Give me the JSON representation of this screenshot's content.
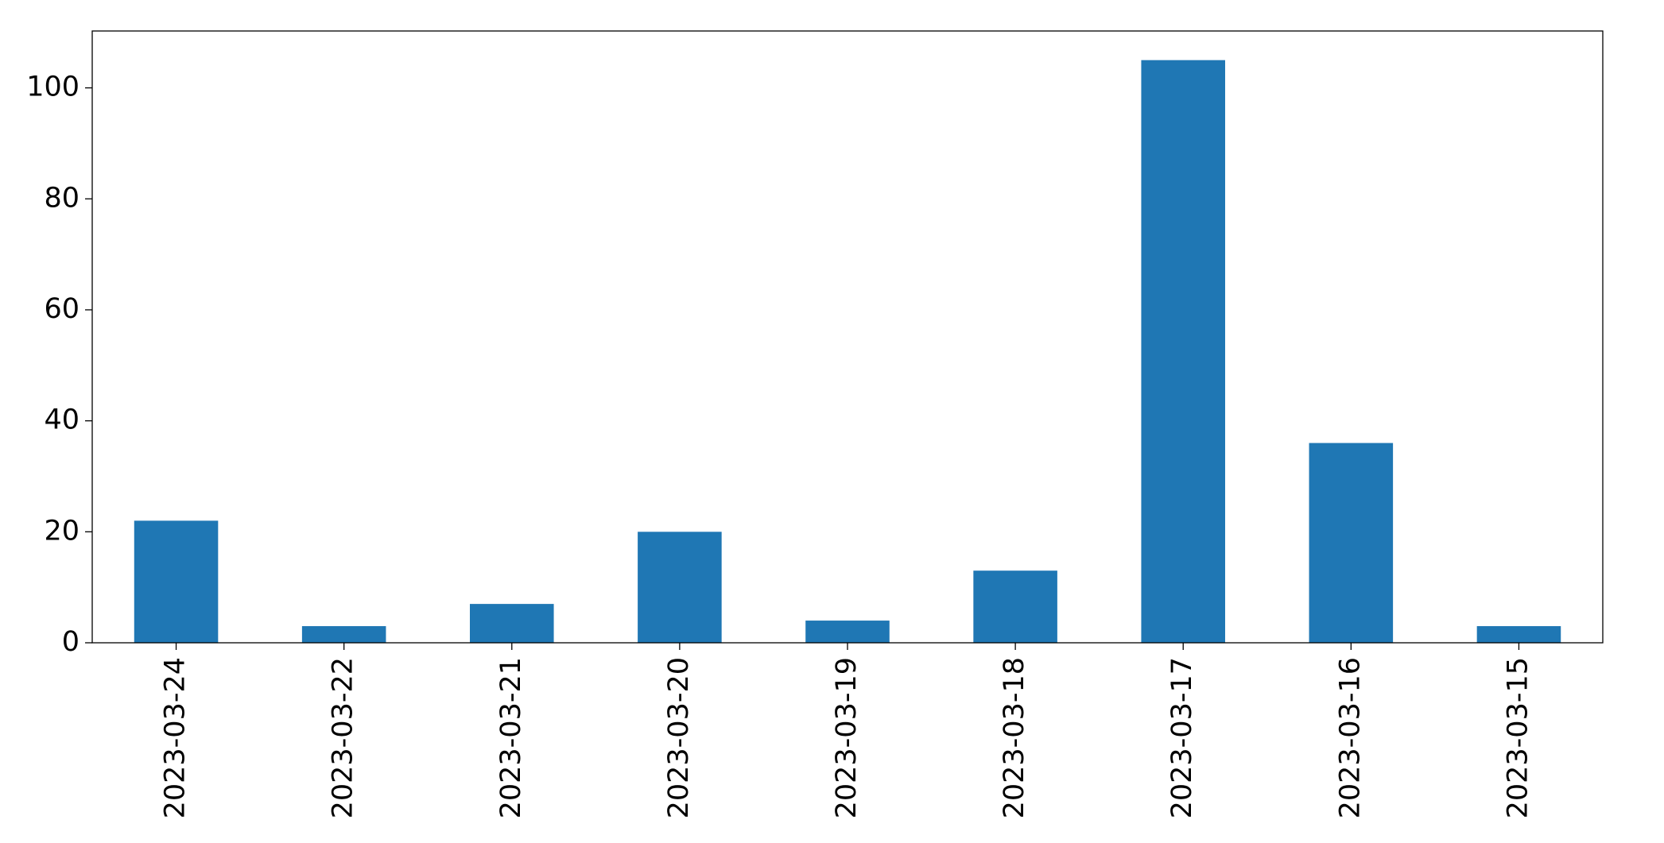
{
  "chart_data": {
    "type": "bar",
    "categories": [
      "2023-03-24",
      "2023-03-22",
      "2023-03-21",
      "2023-03-20",
      "2023-03-19",
      "2023-03-18",
      "2023-03-17",
      "2023-03-16",
      "2023-03-15"
    ],
    "values": [
      22,
      3,
      7,
      20,
      4,
      13,
      105,
      36,
      3
    ],
    "color": "#1f77b4",
    "ylim": [
      0,
      110.25
    ],
    "yticks": [
      0,
      20,
      40,
      60,
      80,
      100
    ],
    "grid": false
  }
}
